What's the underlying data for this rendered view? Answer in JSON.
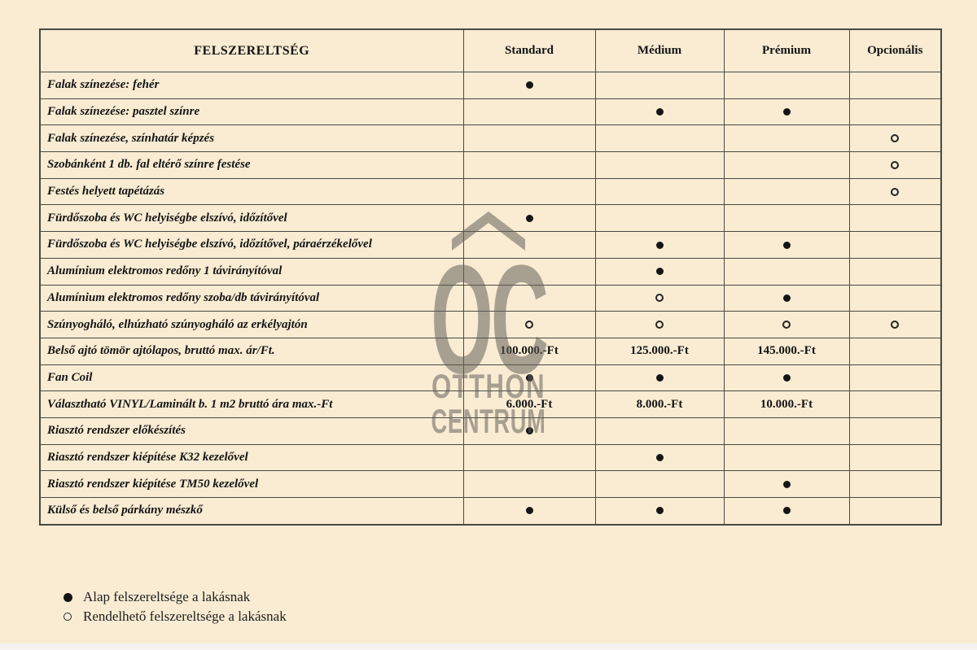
{
  "table": {
    "header": {
      "feature": "FELSZERELTSÉG",
      "columns": [
        "Standard",
        "Médium",
        "Prémium",
        "Opcionális"
      ]
    },
    "rows": [
      {
        "label": "Falak színezése: fehér",
        "cells": [
          "filled",
          "",
          "",
          ""
        ]
      },
      {
        "label": "Falak színezése: pasztel színre",
        "cells": [
          "",
          "filled",
          "filled",
          ""
        ]
      },
      {
        "label": "Falak színezése, színhatár képzés",
        "cells": [
          "",
          "",
          "",
          "hollow"
        ]
      },
      {
        "label": "Szobánként 1 db. fal eltérő színre festése",
        "cells": [
          "",
          "",
          "",
          "hollow"
        ]
      },
      {
        "label": "Festés helyett tapétázás",
        "cells": [
          "",
          "",
          "",
          "hollow"
        ]
      },
      {
        "label": "Fürdőszoba és WC helyiségbe elszívó, időzítővel",
        "cells": [
          "filled",
          "",
          "",
          ""
        ]
      },
      {
        "label": "Fürdőszoba és WC helyiségbe elszívó, időzítővel, páraérzékelővel",
        "cells": [
          "",
          "filled",
          "filled",
          ""
        ]
      },
      {
        "label": "Alumínium elektromos redőny 1 távirányítóval",
        "cells": [
          "",
          "filled",
          "",
          ""
        ]
      },
      {
        "label": "Alumínium elektromos redőny szoba/db távirányítóval",
        "cells": [
          "",
          "hollow",
          "filled",
          ""
        ]
      },
      {
        "label": "Szúnyogháló, elhúzható szúnyogháló az erkélyajtón",
        "cells": [
          "hollow",
          "hollow",
          "hollow",
          "hollow"
        ]
      },
      {
        "label": "Belső ajtó tömör ajtólapos, bruttó max. ár/Ft.",
        "cells": [
          "100.000.-Ft",
          "125.000.-Ft",
          "145.000.-Ft",
          ""
        ]
      },
      {
        "label": "Fan Coil",
        "cells": [
          "filled",
          "filled",
          "filled",
          ""
        ]
      },
      {
        "label": "Választható VINYL/Laminált b. 1 m2 bruttó ára max.-Ft",
        "cells": [
          "6.000.-Ft",
          "8.000.-Ft",
          "10.000.-Ft",
          ""
        ]
      },
      {
        "label": "Riasztó rendszer előkészítés",
        "cells": [
          "filled",
          "",
          "",
          ""
        ]
      },
      {
        "label": "Riasztó rendszer kiépítése K32 kezelővel",
        "cells": [
          "",
          "filled",
          "",
          ""
        ]
      },
      {
        "label": "Riasztó rendszer kiépítése TM50 kezelővel",
        "cells": [
          "",
          "",
          "filled",
          ""
        ]
      },
      {
        "label": "Külső és belső párkány mészkő",
        "cells": [
          "filled",
          "filled",
          "filled",
          ""
        ]
      }
    ]
  },
  "legend": {
    "items": [
      {
        "marker": "filled",
        "label": "Alap felszereltsége a lakásnak"
      },
      {
        "marker": "hollow",
        "label": "Rendelhető felszereltsége a lakásnak"
      }
    ]
  },
  "watermark": {
    "symbol": "OC",
    "line1": "OTTHON",
    "line2": "CENTRUM"
  },
  "colors": {
    "background": "#f9ecd3",
    "grid_line": "#4a4942",
    "text": "#141414",
    "watermark": "rgba(100,96,90,0.55)"
  }
}
